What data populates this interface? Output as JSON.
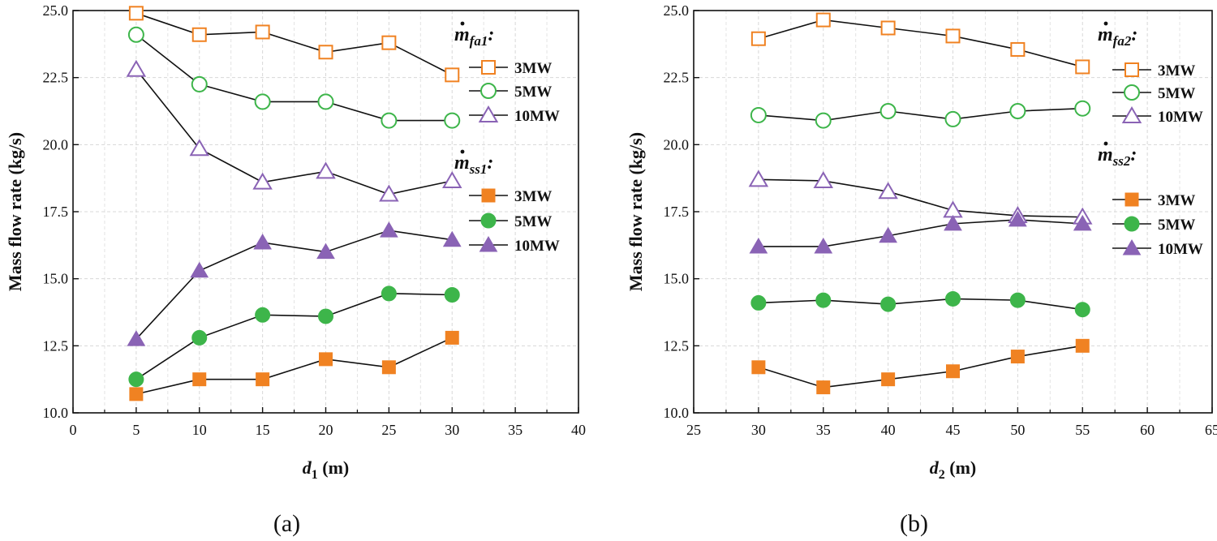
{
  "chart_data": [
    {
      "type": "line",
      "panel_label": "(a)",
      "xlabel_var": "d",
      "xlabel_sub": "1",
      "xlabel_unit": " (m)",
      "ylabel": "Mass flow rate (kg/s)",
      "xlim": [
        0,
        40
      ],
      "ylim": [
        10,
        25
      ],
      "xticks": [
        "0",
        "5",
        "10",
        "15",
        "20",
        "25",
        "30",
        "35",
        "40"
      ],
      "yticks": [
        "10.0",
        "12.5",
        "15.0",
        "17.5",
        "20.0",
        "22.5",
        "25.0"
      ],
      "x": [
        5,
        10,
        15,
        20,
        25,
        30
      ],
      "legend_groups": [
        {
          "head": "m",
          "sub": "fa1",
          "colon": ":",
          "series_index": [
            0,
            1,
            2
          ]
        },
        {
          "head": "m",
          "sub": "ss1",
          "colon": ":",
          "series_index": [
            3,
            4,
            5
          ]
        }
      ],
      "series": [
        {
          "name": "3MW",
          "group": "fa1",
          "marker": "square",
          "filled": false,
          "color": "#f08222",
          "values": [
            24.9,
            24.1,
            24.2,
            23.45,
            23.8,
            22.6
          ]
        },
        {
          "name": "5MW",
          "group": "fa1",
          "marker": "circle",
          "filled": false,
          "color": "#3db54a",
          "values": [
            24.1,
            22.25,
            21.6,
            21.6,
            20.9,
            20.9
          ]
        },
        {
          "name": "10MW",
          "group": "fa1",
          "marker": "triangle",
          "filled": false,
          "color": "#8a63b5",
          "values": [
            22.8,
            19.85,
            18.6,
            19.0,
            18.15,
            18.65
          ]
        },
        {
          "name": "3MW",
          "group": "ss1",
          "marker": "square",
          "filled": true,
          "color": "#f08222",
          "values": [
            10.7,
            11.25,
            11.25,
            12.0,
            11.7,
            12.8
          ]
        },
        {
          "name": "5MW",
          "group": "ss1",
          "marker": "circle",
          "filled": true,
          "color": "#3db54a",
          "values": [
            11.25,
            12.8,
            13.65,
            13.6,
            14.45,
            14.4
          ]
        },
        {
          "name": "10MW",
          "group": "ss1",
          "marker": "triangle",
          "filled": true,
          "color": "#8a63b5",
          "values": [
            12.75,
            15.3,
            16.35,
            16.0,
            16.8,
            16.45
          ]
        }
      ]
    },
    {
      "type": "line",
      "panel_label": "(b)",
      "xlabel_var": "d",
      "xlabel_sub": "2",
      "xlabel_unit": " (m)",
      "ylabel": "Mass flow rate (kg/s)",
      "xlim": [
        25,
        65
      ],
      "ylim": [
        10,
        25
      ],
      "xticks": [
        "25",
        "30",
        "35",
        "40",
        "45",
        "50",
        "55",
        "60",
        "65"
      ],
      "yticks": [
        "10.0",
        "12.5",
        "15.0",
        "17.5",
        "20.0",
        "22.5",
        "25.0"
      ],
      "x": [
        30,
        35,
        40,
        45,
        50,
        55
      ],
      "legend_groups": [
        {
          "head": "m",
          "sub": "fa2",
          "colon": ":",
          "series_index": [
            0,
            1,
            2
          ]
        },
        {
          "head": "m",
          "sub": "ss2",
          "colon": ":",
          "series_index": [
            3,
            4,
            5
          ]
        }
      ],
      "series": [
        {
          "name": "3MW",
          "group": "fa2",
          "marker": "square",
          "filled": false,
          "color": "#f08222",
          "values": [
            23.95,
            24.65,
            24.35,
            24.05,
            23.55,
            22.9
          ]
        },
        {
          "name": "5MW",
          "group": "fa2",
          "marker": "circle",
          "filled": false,
          "color": "#3db54a",
          "values": [
            21.1,
            20.9,
            21.25,
            20.95,
            21.25,
            21.35
          ]
        },
        {
          "name": "10MW",
          "group": "fa2",
          "marker": "triangle",
          "filled": false,
          "color": "#8a63b5",
          "values": [
            18.7,
            18.65,
            18.25,
            17.55,
            17.35,
            17.3
          ]
        },
        {
          "name": "3MW",
          "group": "ss2",
          "marker": "square",
          "filled": true,
          "color": "#f08222",
          "values": [
            11.7,
            10.95,
            11.25,
            11.55,
            12.1,
            12.5
          ]
        },
        {
          "name": "5MW",
          "group": "ss2",
          "marker": "circle",
          "filled": true,
          "color": "#3db54a",
          "values": [
            14.1,
            14.2,
            14.05,
            14.25,
            14.2,
            13.85
          ]
        },
        {
          "name": "10MW",
          "group": "ss2",
          "marker": "triangle",
          "filled": true,
          "color": "#8a63b5",
          "values": [
            16.2,
            16.2,
            16.6,
            17.05,
            17.2,
            17.05
          ]
        }
      ]
    }
  ]
}
